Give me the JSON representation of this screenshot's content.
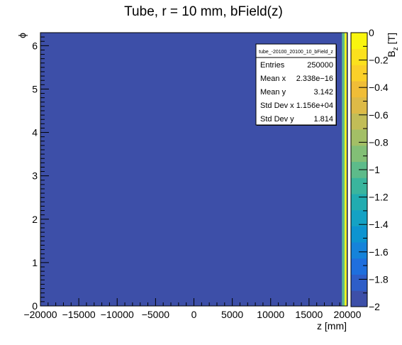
{
  "chart_data": {
    "type": "heatmap",
    "title": "Tube, r = 10 mm, bField(z)",
    "xlabel": "z [mm]",
    "ylabel": "ϕ",
    "zlabel_main": "B",
    "zlabel_sub": "z",
    "zlabel_unit": " [T]",
    "xlim": [
      -20000,
      20000
    ],
    "ylim": [
      0,
      6.3
    ],
    "zlim": [
      -2,
      0
    ],
    "x_ticks": [
      -20000,
      -15000,
      -10000,
      -5000,
      0,
      5000,
      10000,
      15000,
      20000
    ],
    "x_tick_labels": [
      "−20000",
      "−15000",
      "−10000",
      "−5000",
      "0",
      "5000",
      "10000",
      "15000",
      "20000"
    ],
    "y_ticks": [
      0,
      1,
      2,
      3,
      4,
      5,
      6
    ],
    "y_tick_labels": [
      "0",
      "1",
      "2",
      "3",
      "4",
      "5",
      "6"
    ],
    "z_ticks": [
      0,
      -0.2,
      -0.4,
      -0.6,
      -0.8,
      -1,
      -1.2,
      -1.4,
      -1.6,
      -1.8,
      -2
    ],
    "z_tick_labels": [
      "0",
      "−0.2",
      "−0.4",
      "−0.6",
      "−0.8",
      "−1",
      "−1.2",
      "−1.4",
      "−1.6",
      "−1.8",
      "−2"
    ],
    "regions": [
      {
        "x_from": -20000,
        "x_to": 19300,
        "y_from": 0,
        "y_to": 6.3,
        "z": -2
      },
      {
        "x_from": 19300,
        "x_to": 19650,
        "y_from": 0,
        "y_to": 6.3,
        "z": -1.0
      },
      {
        "x_from": 19650,
        "x_to": 19900,
        "y_from": 0,
        "y_to": 6.3,
        "z": -0.1
      },
      {
        "x_from": 19900,
        "x_to": 20000,
        "y_from": 0,
        "y_to": 6.3,
        "z": -2
      }
    ],
    "palette": [
      "#3d4fa8",
      "#2e5ec8",
      "#1f6fdd",
      "#1583da",
      "#0d94d0",
      "#14a2c4",
      "#21acb0",
      "#3ab59d",
      "#5dbb8a",
      "#82bf76",
      "#a3bf66",
      "#c2bd57",
      "#ddba47",
      "#f0bd37",
      "#fad029",
      "#fbe11d",
      "#f9f50f"
    ],
    "legend": "none",
    "grid": false
  },
  "stats": {
    "name": "tube_-20100_20100_10_bField_z",
    "rows": [
      {
        "label": "Entries",
        "value": "250000"
      },
      {
        "label": "Mean x",
        "value": "2.338e−16"
      },
      {
        "label": "Mean y",
        "value": "3.142"
      },
      {
        "label": "Std Dev x",
        "value": "1.156e+04"
      },
      {
        "label": "Std Dev y",
        "value": "1.814"
      }
    ]
  }
}
